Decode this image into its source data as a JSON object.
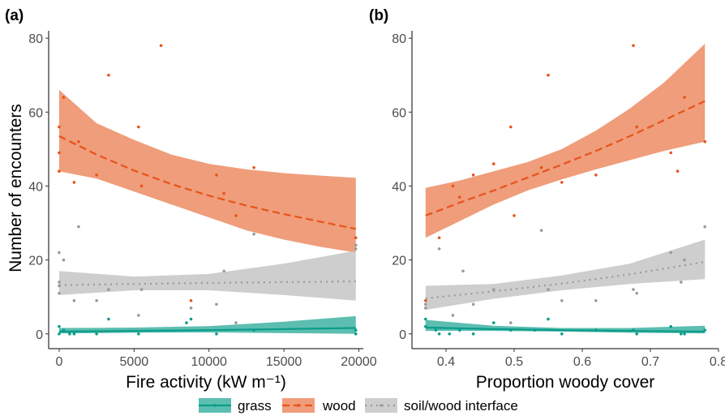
{
  "y_axis_title": "Number of encounters",
  "chart_data": [
    {
      "type": "scatter",
      "panel_label": "(a)",
      "xlabel": "Fire activity (kW m⁻¹)",
      "ylabel": "Number of encounters",
      "xlim": [
        -700,
        20300
      ],
      "ylim": [
        -4,
        82
      ],
      "xticks": [
        0,
        5000,
        10000,
        15000,
        20000
      ],
      "xtick_labels": [
        "0",
        "5000",
        "10000",
        "15000",
        "20000"
      ],
      "yticks": [
        0,
        20,
        40,
        60,
        80
      ],
      "ytick_labels": [
        "0",
        "20",
        "40",
        "60",
        "80"
      ],
      "grid": false,
      "series": [
        {
          "name": "grass",
          "color": "#0c9c8a",
          "fill": "#3fb3a3",
          "dash": "solid",
          "points": [
            [
              0,
              2
            ],
            [
              0,
              0
            ],
            [
              300,
              1
            ],
            [
              700,
              0
            ],
            [
              1000,
              0
            ],
            [
              2500,
              0
            ],
            [
              3300,
              4
            ],
            [
              5300,
              0
            ],
            [
              8500,
              3
            ],
            [
              8800,
              4
            ],
            [
              10500,
              0
            ],
            [
              13000,
              1
            ],
            [
              19800,
              1
            ],
            [
              19800,
              0
            ]
          ],
          "fit": [
            [
              0,
              0.6
            ],
            [
              5000,
              0.8
            ],
            [
              10000,
              1.0
            ],
            [
              15000,
              1.3
            ],
            [
              19800,
              1.6
            ]
          ],
          "band_lower": [
            [
              0,
              0.1
            ],
            [
              5000,
              0.3
            ],
            [
              10000,
              0.4
            ],
            [
              15000,
              0.2
            ],
            [
              19800,
              0
            ]
          ],
          "band_upper": [
            [
              0,
              1.6
            ],
            [
              5000,
              1.7
            ],
            [
              10000,
              2.1
            ],
            [
              15000,
              3.3
            ],
            [
              19800,
              4.8
            ]
          ]
        },
        {
          "name": "wood",
          "color": "#e8531a",
          "fill": "#ec8c63",
          "dash": "dashed",
          "points": [
            [
              0,
              56
            ],
            [
              0,
              49
            ],
            [
              0,
              44
            ],
            [
              300,
              64
            ],
            [
              1000,
              41
            ],
            [
              1300,
              52
            ],
            [
              2500,
              43
            ],
            [
              3300,
              70
            ],
            [
              5300,
              56
            ],
            [
              5500,
              40
            ],
            [
              6800,
              78
            ],
            [
              8800,
              9
            ],
            [
              10500,
              43
            ],
            [
              11000,
              38
            ],
            [
              11800,
              32
            ],
            [
              13000,
              45
            ],
            [
              19800,
              26
            ]
          ],
          "fit": [
            [
              0,
              53.5
            ],
            [
              2500,
              48.5
            ],
            [
              5000,
              44.2
            ],
            [
              7500,
              40.5
            ],
            [
              10000,
              37.4
            ],
            [
              12500,
              34.7
            ],
            [
              15000,
              32.4
            ],
            [
              17500,
              30.3
            ],
            [
              19800,
              28.4
            ]
          ],
          "band_lower": [
            [
              0,
              44
            ],
            [
              2500,
              42
            ],
            [
              5000,
              38.5
            ],
            [
              7500,
              35
            ],
            [
              10000,
              31.5
            ],
            [
              12500,
              28
            ],
            [
              15000,
              25.5
            ],
            [
              17500,
              23.5
            ],
            [
              19800,
              22
            ]
          ],
          "band_upper": [
            [
              0,
              66
            ],
            [
              2500,
              57
            ],
            [
              5000,
              52.5
            ],
            [
              7500,
              48.5
            ],
            [
              10000,
              46
            ],
            [
              12500,
              44.5
            ],
            [
              15000,
              43.5
            ],
            [
              17500,
              42.8
            ],
            [
              19800,
              42.2
            ]
          ]
        },
        {
          "name": "soil/wood interface",
          "color": "#9a9a9a",
          "fill": "#c5c5c5",
          "dash": "dotted",
          "points": [
            [
              0,
              22
            ],
            [
              0,
              14
            ],
            [
              0,
              13
            ],
            [
              0,
              11
            ],
            [
              300,
              20
            ],
            [
              1000,
              9
            ],
            [
              1300,
              29
            ],
            [
              2500,
              9
            ],
            [
              3300,
              12
            ],
            [
              5300,
              5
            ],
            [
              5500,
              12
            ],
            [
              8800,
              7
            ],
            [
              10500,
              8
            ],
            [
              11000,
              17
            ],
            [
              11800,
              3
            ],
            [
              13000,
              27
            ],
            [
              19800,
              24
            ],
            [
              19800,
              23
            ]
          ],
          "fit": [
            [
              0,
              13.2
            ],
            [
              5000,
              13.5
            ],
            [
              10000,
              13.8
            ],
            [
              15000,
              14.0
            ],
            [
              19800,
              14.2
            ]
          ],
          "band_lower": [
            [
              0,
              10.5
            ],
            [
              5000,
              11.8
            ],
            [
              10000,
              11.8
            ],
            [
              15000,
              10.5
            ],
            [
              19800,
              9
            ]
          ],
          "band_upper": [
            [
              0,
              17
            ],
            [
              5000,
              15.5
            ],
            [
              10000,
              16.2
            ],
            [
              15000,
              19
            ],
            [
              19800,
              22.5
            ]
          ]
        }
      ]
    },
    {
      "type": "scatter",
      "panel_label": "(b)",
      "xlabel": "Proportion woody cover",
      "ylabel": "",
      "xlim": [
        0.35,
        0.8
      ],
      "ylim": [
        -4,
        82
      ],
      "xticks": [
        0.4,
        0.5,
        0.6,
        0.7,
        0.8
      ],
      "xtick_labels": [
        "0.4",
        "0.5",
        "0.6",
        "0.7",
        "0.8"
      ],
      "yticks": [
        0,
        20,
        40,
        60,
        80
      ],
      "ytick_labels": [
        "0",
        "20",
        "40",
        "60",
        "80"
      ],
      "grid": false,
      "series": [
        {
          "name": "grass",
          "color": "#0c9c8a",
          "fill": "#3fb3a3",
          "dash": "solid",
          "points": [
            [
              0.37,
              4
            ],
            [
              0.37,
              2
            ],
            [
              0.385,
              1
            ],
            [
              0.39,
              0
            ],
            [
              0.405,
              0
            ],
            [
              0.42,
              1
            ],
            [
              0.44,
              0
            ],
            [
              0.47,
              3
            ],
            [
              0.495,
              1
            ],
            [
              0.53,
              1
            ],
            [
              0.55,
              4
            ],
            [
              0.57,
              0
            ],
            [
              0.62,
              1
            ],
            [
              0.675,
              1
            ],
            [
              0.68,
              0
            ],
            [
              0.73,
              2
            ],
            [
              0.745,
              0
            ],
            [
              0.75,
              0
            ],
            [
              0.78,
              1
            ]
          ],
          "fit": [
            [
              0.37,
              1.7
            ],
            [
              0.47,
              1.3
            ],
            [
              0.57,
              1.0
            ],
            [
              0.67,
              0.8
            ],
            [
              0.78,
              0.6
            ]
          ],
          "band_lower": [
            [
              0.37,
              0.8
            ],
            [
              0.47,
              0.8
            ],
            [
              0.57,
              0.6
            ],
            [
              0.67,
              0.3
            ],
            [
              0.78,
              0.1
            ]
          ],
          "band_upper": [
            [
              0.37,
              3.8
            ],
            [
              0.47,
              2.2
            ],
            [
              0.57,
              1.6
            ],
            [
              0.67,
              1.6
            ],
            [
              0.78,
              2.2
            ]
          ]
        },
        {
          "name": "wood",
          "color": "#e8531a",
          "fill": "#ec8c63",
          "dash": "dashed",
          "points": [
            [
              0.37,
              9
            ],
            [
              0.39,
              26
            ],
            [
              0.41,
              40
            ],
            [
              0.42,
              37
            ],
            [
              0.44,
              43
            ],
            [
              0.47,
              46
            ],
            [
              0.495,
              56
            ],
            [
              0.5,
              32
            ],
            [
              0.54,
              45
            ],
            [
              0.55,
              70
            ],
            [
              0.57,
              41
            ],
            [
              0.62,
              43
            ],
            [
              0.675,
              78
            ],
            [
              0.68,
              56
            ],
            [
              0.73,
              49
            ],
            [
              0.74,
              44
            ],
            [
              0.75,
              64
            ],
            [
              0.78,
              52
            ]
          ],
          "fit": [
            [
              0.37,
              32
            ],
            [
              0.42,
              35.5
            ],
            [
              0.47,
              38.8
            ],
            [
              0.52,
              42.3
            ],
            [
              0.57,
              45.8
            ],
            [
              0.62,
              49.5
            ],
            [
              0.67,
              53.5
            ],
            [
              0.72,
              57.8
            ],
            [
              0.78,
              63
            ]
          ],
          "band_lower": [
            [
              0.37,
              26
            ],
            [
              0.42,
              30.5
            ],
            [
              0.47,
              35
            ],
            [
              0.52,
              38.8
            ],
            [
              0.57,
              41.8
            ],
            [
              0.62,
              44.5
            ],
            [
              0.67,
              47
            ],
            [
              0.72,
              49.5
            ],
            [
              0.78,
              52
            ]
          ],
          "band_upper": [
            [
              0.37,
              39.5
            ],
            [
              0.42,
              41.5
            ],
            [
              0.47,
              44
            ],
            [
              0.52,
              46.5
            ],
            [
              0.57,
              50
            ],
            [
              0.62,
              55
            ],
            [
              0.67,
              61
            ],
            [
              0.72,
              68
            ],
            [
              0.78,
              78.5
            ]
          ]
        },
        {
          "name": "soil/wood interface",
          "color": "#9a9a9a",
          "fill": "#c5c5c5",
          "dash": "dotted",
          "points": [
            [
              0.37,
              7
            ],
            [
              0.37,
              8
            ],
            [
              0.39,
              23
            ],
            [
              0.41,
              5
            ],
            [
              0.425,
              17
            ],
            [
              0.44,
              8
            ],
            [
              0.47,
              12
            ],
            [
              0.495,
              3
            ],
            [
              0.54,
              28
            ],
            [
              0.55,
              12
            ],
            [
              0.57,
              9
            ],
            [
              0.62,
              9
            ],
            [
              0.675,
              12
            ],
            [
              0.68,
              11
            ],
            [
              0.73,
              22
            ],
            [
              0.745,
              14
            ],
            [
              0.75,
              20
            ],
            [
              0.78,
              29
            ]
          ],
          "fit": [
            [
              0.37,
              9.6
            ],
            [
              0.47,
              11.5
            ],
            [
              0.57,
              13.6
            ],
            [
              0.67,
              16.1
            ],
            [
              0.78,
              19.5
            ]
          ],
          "band_lower": [
            [
              0.37,
              6.5
            ],
            [
              0.47,
              9.5
            ],
            [
              0.57,
              11.8
            ],
            [
              0.67,
              13.5
            ],
            [
              0.78,
              14.8
            ]
          ],
          "band_upper": [
            [
              0.37,
              13
            ],
            [
              0.47,
              13.5
            ],
            [
              0.57,
              15.8
            ],
            [
              0.67,
              19
            ],
            [
              0.78,
              25.5
            ]
          ]
        }
      ]
    }
  ],
  "legend": {
    "position": "bottom",
    "items": [
      {
        "label": "grass",
        "color": "#0c9c8a",
        "fill": "#3fb3a3",
        "dash": "solid"
      },
      {
        "label": "wood",
        "color": "#e8531a",
        "fill": "#ec8c63",
        "dash": "dashed"
      },
      {
        "label": "soil/wood interface",
        "color": "#9a9a9a",
        "fill": "#c5c5c5",
        "dash": "dotted"
      }
    ]
  }
}
